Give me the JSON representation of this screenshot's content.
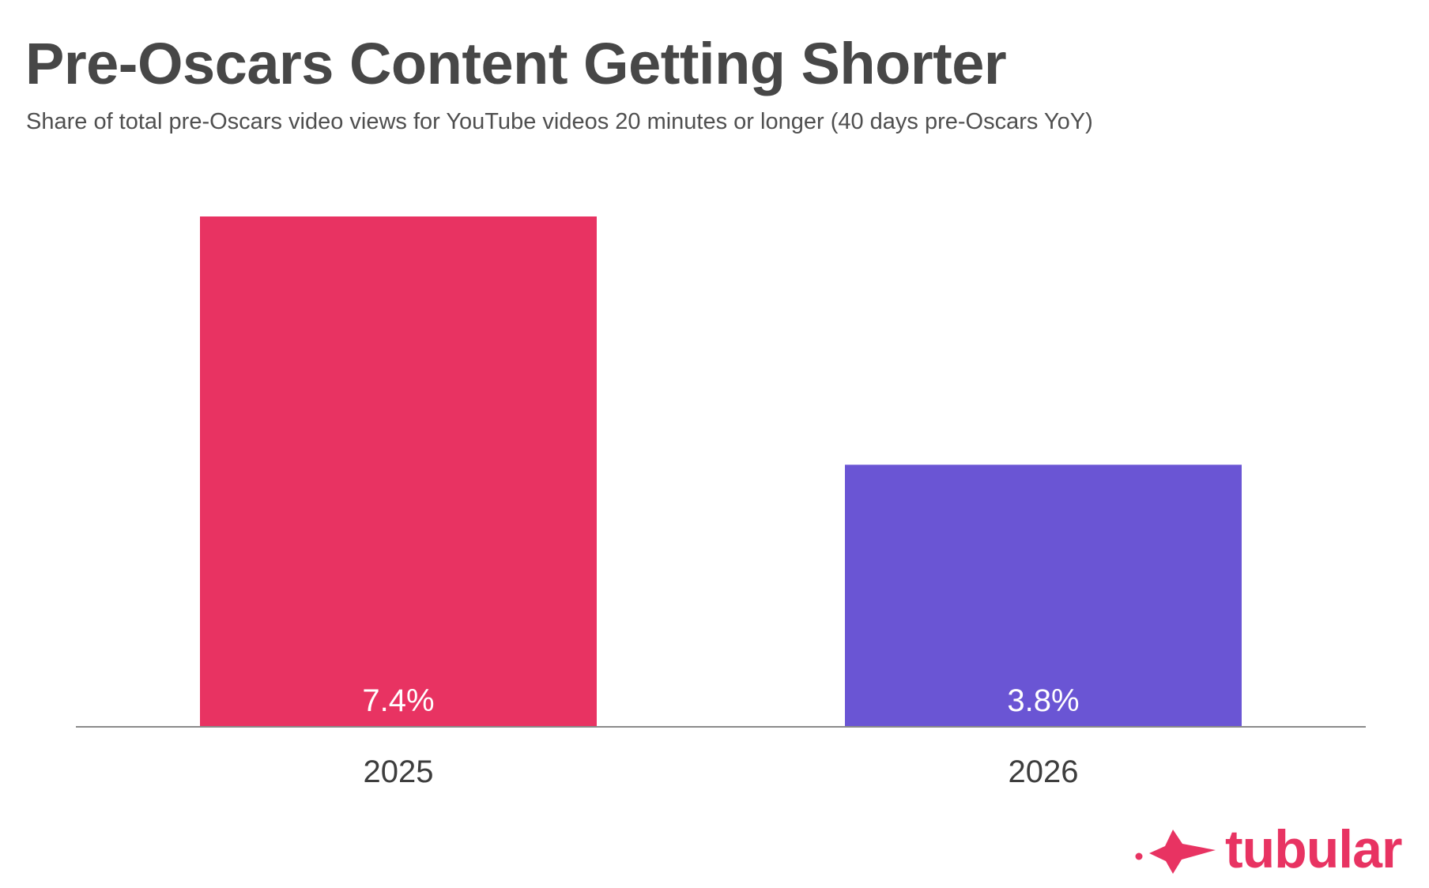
{
  "header": {
    "title": "Pre-Oscars Content Getting Shorter",
    "subtitle": "Share of total pre-Oscars video views for YouTube videos 20 minutes or longer (40 days pre-Oscars YoY)"
  },
  "chart_data": {
    "type": "bar",
    "title": "Pre-Oscars Content Getting Shorter",
    "subtitle": "Share of total pre-Oscars video views for YouTube videos 20 minutes or longer (40 days pre-Oscars YoY)",
    "categories": [
      "2025",
      "2026"
    ],
    "values": [
      7.4,
      3.8
    ],
    "data_labels": [
      "7.4%",
      "3.8%"
    ],
    "bar_colors": [
      "#e83362",
      "#6a55d4"
    ],
    "ylim": [
      0,
      7.4
    ],
    "grid": false,
    "legend": "none"
  },
  "brand": {
    "name": "tubular",
    "logo_icon": "tubular-fish-icon",
    "color": "#e83362"
  }
}
